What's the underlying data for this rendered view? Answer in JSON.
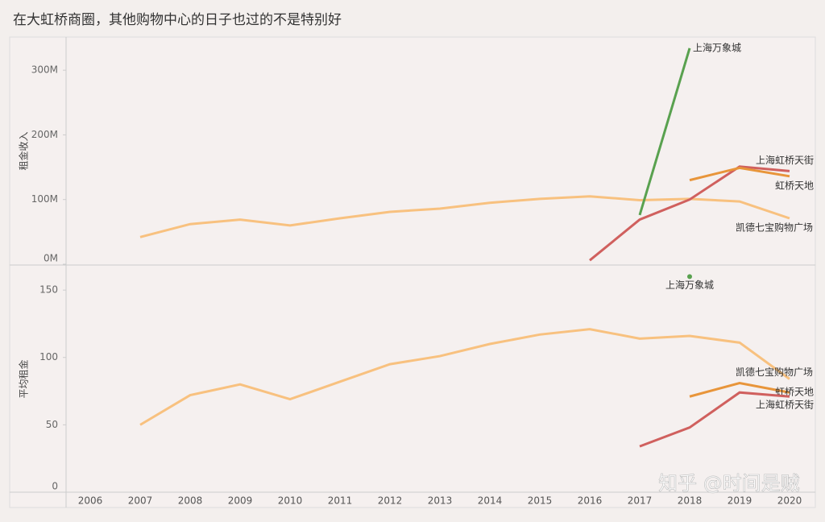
{
  "title": "在大虹桥商圈，其他购物中心的日子也过的不是特别好",
  "watermark": "知乎 @时间是贼",
  "chart_data": [
    {
      "type": "line",
      "ylabel": "租金收入",
      "x": [
        "2006",
        "2007",
        "2008",
        "2009",
        "2010",
        "2011",
        "2012",
        "2013",
        "2014",
        "2015",
        "2016",
        "2017",
        "2018",
        "2019",
        "2020"
      ],
      "ylim": [
        0,
        350
      ],
      "yticks": [
        {
          "value": 0,
          "label": "0M"
        },
        {
          "value": 100,
          "label": "100M"
        },
        {
          "value": 200,
          "label": "200M"
        },
        {
          "value": 300,
          "label": "300M"
        }
      ],
      "series": [
        {
          "name": "凯德七宝购物广场",
          "color": "#f8c17f",
          "values": [
            null,
            42,
            62,
            69,
            60,
            71,
            81,
            86,
            95,
            101,
            105,
            99,
            101,
            97,
            71
          ]
        },
        {
          "name": "上海虹桥天街",
          "color": "#d0605e",
          "values": [
            null,
            null,
            null,
            null,
            null,
            null,
            null,
            null,
            null,
            null,
            6,
            69,
            100,
            151,
            144
          ]
        },
        {
          "name": "虹桥天地",
          "color": "#e8953a",
          "values": [
            null,
            null,
            null,
            null,
            null,
            null,
            null,
            null,
            null,
            null,
            null,
            null,
            130,
            149,
            136
          ]
        },
        {
          "name": "上海万象城",
          "color": "#59a14f",
          "values": [
            null,
            null,
            null,
            null,
            null,
            null,
            null,
            null,
            null,
            null,
            null,
            76,
            334,
            null,
            null
          ]
        }
      ]
    },
    {
      "type": "line",
      "ylabel": "平均租金",
      "x": [
        "2006",
        "2007",
        "2008",
        "2009",
        "2010",
        "2011",
        "2012",
        "2013",
        "2014",
        "2015",
        "2016",
        "2017",
        "2018",
        "2019",
        "2020"
      ],
      "ylim": [
        0,
        168
      ],
      "yticks": [
        0,
        50,
        100,
        150
      ],
      "series": [
        {
          "name": "凯德七宝购物广场",
          "color": "#f8c17f",
          "values": [
            null,
            50,
            72,
            80,
            69,
            82,
            95,
            101,
            110,
            117,
            121,
            114,
            116,
            111,
            84
          ]
        },
        {
          "name": "虹桥天地",
          "color": "#e8953a",
          "values": [
            null,
            null,
            null,
            null,
            null,
            null,
            null,
            null,
            null,
            null,
            null,
            null,
            71,
            81,
            74
          ]
        },
        {
          "name": "上海虹桥天街",
          "color": "#d0605e",
          "values": [
            null,
            null,
            null,
            null,
            null,
            null,
            null,
            null,
            null,
            null,
            null,
            34,
            48,
            74,
            71
          ]
        },
        {
          "name": "上海万象城",
          "color": "#59a14f",
          "values": [
            null,
            null,
            null,
            null,
            null,
            null,
            null,
            null,
            null,
            null,
            null,
            null,
            160,
            null,
            null
          ]
        }
      ]
    }
  ]
}
